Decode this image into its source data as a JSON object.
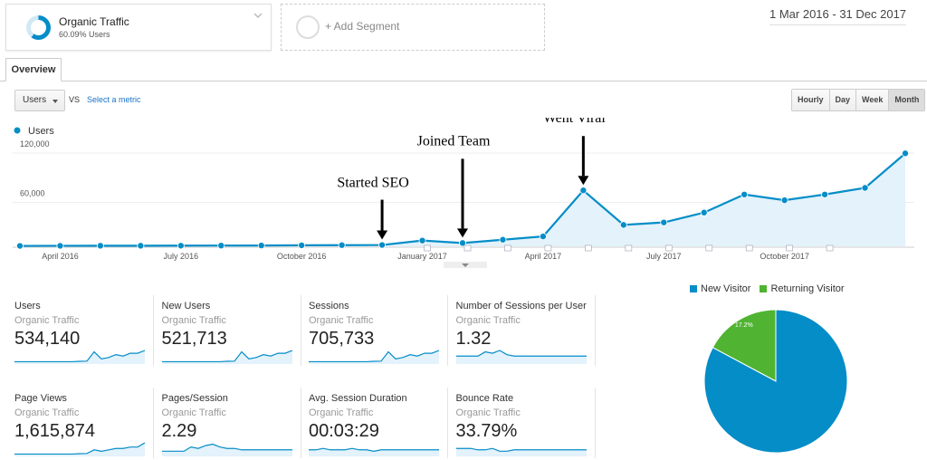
{
  "segment": {
    "title": "Organic Traffic",
    "subtitle": "60.09% Users",
    "share": 0.6009
  },
  "add_segment": {
    "label": "+ Add Segment"
  },
  "date_range": {
    "label": "1 Mar 2016 - 31 Dec 2017"
  },
  "tabs": [
    {
      "label": "Overview"
    }
  ],
  "metric_picker": {
    "selected": "Users",
    "vs": "VS",
    "select_metric": "Select a metric"
  },
  "period_buttons": [
    {
      "label": "Hourly"
    },
    {
      "label": "Day"
    },
    {
      "label": "Week"
    },
    {
      "label": "Month",
      "active": true
    }
  ],
  "colors": {
    "line": "#058dc7",
    "area": "#e3f2fb",
    "returning": "#50b432",
    "annotation": "#000000"
  },
  "chart_data": {
    "type": "area",
    "series": [
      {
        "name": "Users",
        "values": [
          500,
          600,
          700,
          700,
          800,
          900,
          1000,
          1200,
          1400,
          1600,
          7000,
          4000,
          8000,
          12000,
          68000,
          26000,
          29000,
          41000,
          63000,
          56000,
          63000,
          71000,
          113000
        ]
      }
    ],
    "x": [
      "2016-03",
      "2016-04",
      "2016-05",
      "2016-06",
      "2016-07",
      "2016-08",
      "2016-09",
      "2016-10",
      "2016-11",
      "2016-12",
      "2017-01",
      "2017-02",
      "2017-03",
      "2017-04",
      "2017-05",
      "2017-06",
      "2017-07",
      "2017-08",
      "2017-09",
      "2017-10",
      "2017-11",
      "2017-12",
      "2018-01"
    ],
    "x_tick_labels": [
      "April 2016",
      "July 2016",
      "October 2016",
      "January 2017",
      "April 2017",
      "July 2017",
      "October 2017"
    ],
    "x_tick_positions": [
      "2016-04",
      "2016-07",
      "2016-10",
      "2017-01",
      "2017-04",
      "2017-07",
      "2017-10"
    ],
    "y_tick_labels": [
      "120,000",
      "60,000"
    ],
    "y_ticks": [
      120000,
      60000
    ],
    "ylim": [
      0,
      120000
    ],
    "legend": "top-left",
    "annotations": [
      {
        "text": "Started SEO",
        "x": "2016-12"
      },
      {
        "text": "Joined Team",
        "x": "2017-02"
      },
      {
        "text": "Went Viral",
        "x": "2017-05"
      }
    ]
  },
  "metrics": [
    {
      "name": "Users",
      "segment": "Organic Traffic",
      "value": "534,140"
    },
    {
      "name": "New Users",
      "segment": "Organic Traffic",
      "value": "521,713"
    },
    {
      "name": "Sessions",
      "segment": "Organic Traffic",
      "value": "705,733"
    },
    {
      "name": "Number of Sessions per User",
      "segment": "Organic Traffic",
      "value": "1.32"
    },
    {
      "name": "Page Views",
      "segment": "Organic Traffic",
      "value": "1,615,874"
    },
    {
      "name": "Pages/Session",
      "segment": "Organic Traffic",
      "value": "2.29"
    },
    {
      "name": "Avg. Session Duration",
      "segment": "Organic Traffic",
      "value": "00:03:29"
    },
    {
      "name": "Bounce Rate",
      "segment": "Organic Traffic",
      "value": "33.79%"
    }
  ],
  "pie": {
    "legend": [
      {
        "label": "New Visitor"
      },
      {
        "label": "Returning Visitor"
      }
    ],
    "chart_data": {
      "type": "pie",
      "categories": [
        "New Visitor",
        "Returning Visitor"
      ],
      "values": [
        82.8,
        17.2
      ],
      "labels": [
        "82.8%",
        "17.2%"
      ]
    }
  }
}
